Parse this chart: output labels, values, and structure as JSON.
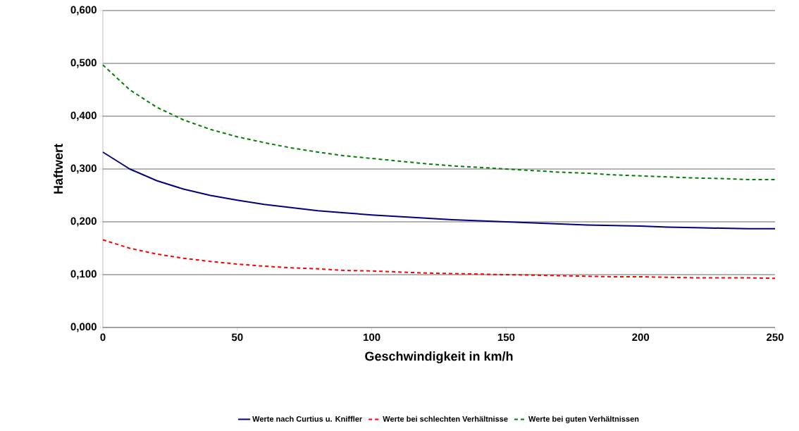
{
  "chart_data": {
    "type": "line",
    "xlabel": "Geschwindigkeit in km/h",
    "ylabel": "Haftwert",
    "x": [
      0,
      10,
      20,
      30,
      40,
      50,
      60,
      70,
      80,
      90,
      100,
      110,
      120,
      130,
      140,
      150,
      160,
      170,
      180,
      190,
      200,
      210,
      220,
      230,
      240,
      250
    ],
    "series": [
      {
        "name": "Werte nach Curtius u. Kniffler",
        "color": "#000080",
        "line_style": "solid",
        "values": [
          0.332,
          0.3,
          0.278,
          0.262,
          0.25,
          0.241,
          0.233,
          0.227,
          0.221,
          0.217,
          0.213,
          0.21,
          0.207,
          0.204,
          0.202,
          0.2,
          0.198,
          0.196,
          0.194,
          0.193,
          0.192,
          0.19,
          0.189,
          0.188,
          0.187,
          0.187
        ]
      },
      {
        "name": "Werte bei schlechten Verhältnisse",
        "color": "#ff0000",
        "line_style": "dashed",
        "values": [
          0.166,
          0.15,
          0.139,
          0.131,
          0.125,
          0.12,
          0.116,
          0.113,
          0.111,
          0.108,
          0.107,
          0.105,
          0.103,
          0.102,
          0.101,
          0.1,
          0.099,
          0.098,
          0.097,
          0.096,
          0.096,
          0.095,
          0.094,
          0.094,
          0.094,
          0.093
        ]
      },
      {
        "name": "Werte bei guten Verhältnissen",
        "color": "#008000",
        "line_style": "dashed",
        "values": [
          0.497,
          0.45,
          0.417,
          0.393,
          0.375,
          0.361,
          0.35,
          0.34,
          0.332,
          0.325,
          0.32,
          0.315,
          0.31,
          0.306,
          0.303,
          0.3,
          0.297,
          0.294,
          0.292,
          0.289,
          0.287,
          0.285,
          0.283,
          0.282,
          0.28,
          0.28
        ]
      }
    ],
    "xlim": [
      0,
      250
    ],
    "xticks": [
      0,
      50,
      100,
      150,
      200,
      250
    ],
    "ylim": [
      0,
      0.6
    ],
    "yticks": [
      {
        "value": 0,
        "label": "0,000"
      },
      {
        "value": 0.1,
        "label": "0,100"
      },
      {
        "value": 0.2,
        "label": "0,200"
      },
      {
        "value": 0.3,
        "label": "0,300"
      },
      {
        "value": 0.4,
        "label": "0,400"
      },
      {
        "value": 0.5,
        "label": "0,500"
      },
      {
        "value": 0.6,
        "label": "0,600"
      }
    ],
    "grid": "y",
    "legend": "bottom",
    "marker": "none"
  }
}
